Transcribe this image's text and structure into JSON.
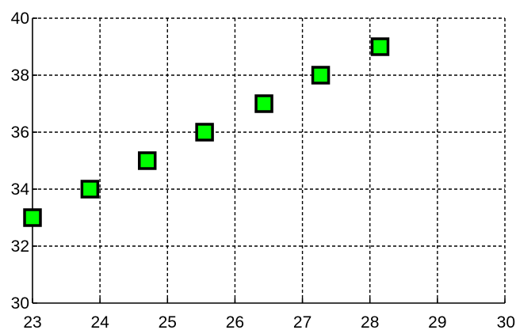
{
  "chart_data": {
    "type": "scatter",
    "title": "",
    "xlabel": "",
    "ylabel": "",
    "xlim": [
      23,
      30
    ],
    "ylim": [
      30,
      40
    ],
    "xticks": [
      23,
      24,
      25,
      26,
      27,
      28,
      29,
      30
    ],
    "yticks": [
      30,
      32,
      34,
      36,
      38,
      40
    ],
    "grid": true,
    "marker": "square",
    "colors": {
      "marker_fill": "#00ff00",
      "marker_edge": "#000000",
      "grid": "#000000",
      "background": "#ffffff"
    },
    "series": [
      {
        "x": [
          23.0,
          23.85,
          24.7,
          25.55,
          26.43,
          27.27,
          28.15
        ],
        "y": [
          33,
          34,
          35,
          36,
          37,
          38,
          39
        ]
      }
    ]
  }
}
